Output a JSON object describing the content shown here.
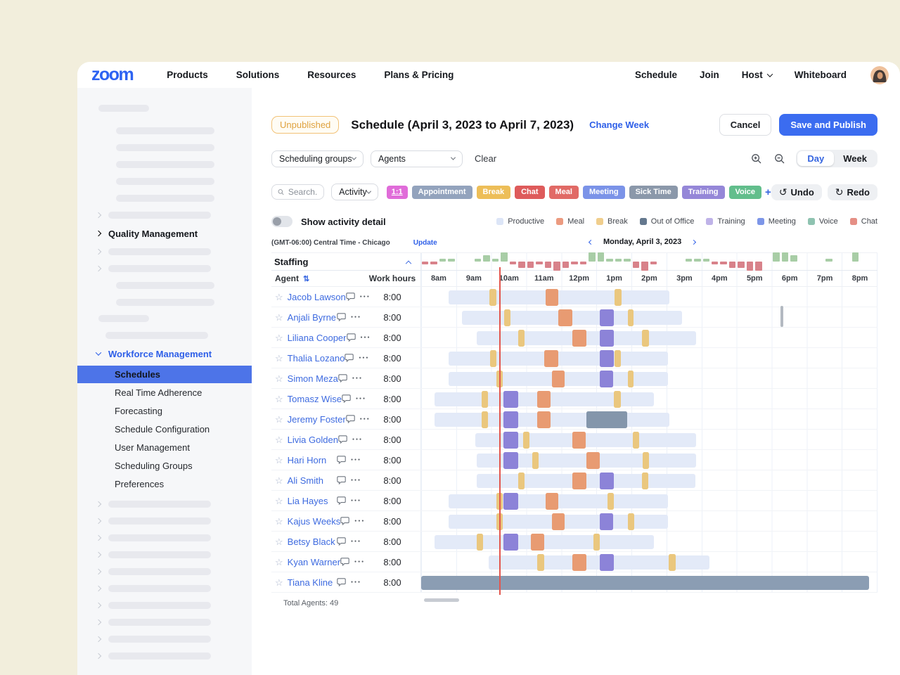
{
  "nav": {
    "logo": "zoom",
    "left_items": [
      "Products",
      "Solutions",
      "Resources",
      "Plans & Pricing"
    ],
    "right_items": [
      "Schedule",
      "Join",
      "Host",
      "Whiteboard"
    ]
  },
  "sidebar": {
    "quality_management": "Quality Management",
    "workforce_management": "Workforce Management",
    "items": [
      "Schedules",
      "Real Time Adherence",
      "Forecasting",
      "Schedule Configuration",
      "User Management",
      "Scheduling Groups",
      "Preferences"
    ],
    "selected": "Schedules"
  },
  "header": {
    "badge": "Unpublished",
    "title": "Schedule (April 3, 2023 to April 7, 2023)",
    "change_week": "Change Week",
    "cancel": "Cancel",
    "save": "Save and Publish"
  },
  "filters": {
    "groups_dropdown": "Scheduling groups",
    "agents_dropdown": "Agents",
    "clear": "Clear",
    "search_placeholder": "Search...",
    "activity_dropdown": "Activity",
    "day": "Day",
    "week": "Week",
    "add": "+",
    "undo": "Undo",
    "redo": "Redo"
  },
  "activity_chips": [
    {
      "label": "1:1",
      "color": "#E06CD9"
    },
    {
      "label": "Appointment",
      "color": "#93A3BD"
    },
    {
      "label": "Break",
      "color": "#EDBE58"
    },
    {
      "label": "Chat",
      "color": "#DE5B5B"
    },
    {
      "label": "Meal",
      "color": "#E16A66"
    },
    {
      "label": "Meeting",
      "color": "#7B93E8"
    },
    {
      "label": "Sick Time",
      "color": "#8B98AA"
    },
    {
      "label": "Training",
      "color": "#9587D8"
    },
    {
      "label": "Voice",
      "color": "#62BE8C"
    }
  ],
  "toggle_label": "Show activity detail",
  "legend": [
    {
      "label": "Productive",
      "color": "#DCE5F7"
    },
    {
      "label": "Meal",
      "color": "#EC9B80"
    },
    {
      "label": "Break",
      "color": "#F0CE8D"
    },
    {
      "label": "Out of Office",
      "color": "#64788E"
    },
    {
      "label": "Training",
      "color": "#BFB3E8"
    },
    {
      "label": "Meeting",
      "color": "#7D96E8"
    },
    {
      "label": "Voice",
      "color": "#8FC3B1"
    },
    {
      "label": "Chat",
      "color": "#E58F85"
    }
  ],
  "timezone": {
    "label": "(GMT-06:00) Central Time - Chicago",
    "update": "Update"
  },
  "date_nav": {
    "date": "Monday, April 3, 2023"
  },
  "staffing": {
    "label": "Staffing",
    "values": [
      -1,
      -1,
      1,
      1,
      0,
      0,
      1,
      2,
      1,
      3,
      -1,
      -2,
      -2,
      -1,
      -2,
      -3,
      -2,
      -1,
      -1,
      3,
      3,
      1,
      1,
      1,
      -2,
      -3,
      -1,
      0,
      0,
      0,
      1,
      1,
      1,
      -1,
      -1,
      -2,
      -2,
      -3,
      -3,
      0,
      3,
      3,
      2,
      0,
      0,
      0,
      1,
      0,
      0,
      3,
      0,
      0
    ]
  },
  "table": {
    "agent_header": "Agent",
    "work_hours_header": "Work hours",
    "hours": [
      "8am",
      "9am",
      "10am",
      "11am",
      "12pm",
      "1pm",
      "2pm",
      "3pm",
      "4pm",
      "5pm",
      "6pm",
      "7pm",
      "8pm"
    ],
    "total": "Total Agents: 49",
    "now_pct": 17.3
  },
  "palette": {
    "productive": "#E3EAF8",
    "b": "#EAC77E",
    "m": "#E89B72",
    "t": "#8C83D8",
    "o": "#8496AB",
    "full_ooo": "#8B9DB3",
    "staff_up": "#A8CDA6",
    "staff_down": "#D8828A"
  },
  "agents": [
    {
      "name": "Jacob Lawson",
      "hours": "8:00",
      "bar": [
        6.0,
        54.4
      ],
      "segs": [
        [
          "b",
          15.0,
          16.5
        ],
        [
          "m",
          27.2,
          30.1
        ],
        [
          "b",
          42.3,
          43.9
        ]
      ]
    },
    {
      "name": "Anjali Byrne",
      "hours": "8:00",
      "bar": [
        9.0,
        57.2
      ],
      "segs": [
        [
          "b",
          18.2,
          19.5
        ],
        [
          "m",
          30.1,
          33.1
        ],
        [
          "t",
          39.1,
          42.2
        ],
        [
          "b",
          45.3,
          46.5
        ]
      ]
    },
    {
      "name": "Liliana Cooper",
      "hours": "8:00",
      "bar": [
        12.1,
        60.3
      ],
      "segs": [
        [
          "b",
          21.2,
          22.6
        ],
        [
          "m",
          33.1,
          36.2
        ],
        [
          "t",
          39.1,
          42.2
        ],
        [
          "b",
          48.4,
          49.9
        ]
      ]
    },
    {
      "name": "Thalia Lozano",
      "hours": "8:00",
      "bar": [
        6.0,
        54.1
      ],
      "segs": [
        [
          "b",
          15.1,
          16.5
        ],
        [
          "m",
          27.0,
          30.1
        ],
        [
          "t",
          39.1,
          42.2
        ],
        [
          "b",
          42.3,
          43.7
        ]
      ]
    },
    {
      "name": "Simon Meza",
      "hours": "8:00",
      "bar": [
        6.0,
        54.1
      ],
      "segs": [
        [
          "b",
          16.5,
          17.9
        ],
        [
          "m",
          28.6,
          31.5
        ],
        [
          "t",
          39.1,
          42.0
        ],
        [
          "b",
          45.3,
          46.5
        ]
      ]
    },
    {
      "name": "Tomasz Wise",
      "hours": "8:00",
      "bar": [
        2.9,
        51.0
      ],
      "segs": [
        [
          "b",
          13.3,
          14.7
        ],
        [
          "t",
          18.1,
          21.2
        ],
        [
          "m",
          25.5,
          28.4
        ],
        [
          "b",
          42.2,
          43.7
        ]
      ]
    },
    {
      "name": "Jeremy Foster",
      "hours": "8:00",
      "bar": [
        2.9,
        54.4
      ],
      "segs": [
        [
          "b",
          13.3,
          14.7
        ],
        [
          "t",
          18.1,
          21.2
        ],
        [
          "m",
          25.5,
          28.4
        ],
        [
          "o",
          36.2,
          45.1
        ]
      ]
    },
    {
      "name": "Livia Golden",
      "hours": "8:00",
      "bar": [
        11.9,
        60.3
      ],
      "segs": [
        [
          "t",
          18.1,
          21.2
        ],
        [
          "b",
          22.4,
          23.8
        ],
        [
          "m",
          33.1,
          36.0
        ],
        [
          "b",
          46.4,
          47.8
        ]
      ]
    },
    {
      "name": "Hari Horn",
      "hours": "8:00",
      "bar": [
        12.1,
        60.3
      ],
      "segs": [
        [
          "t",
          18.1,
          21.2
        ],
        [
          "b",
          24.3,
          25.7
        ],
        [
          "m",
          36.2,
          39.1
        ],
        [
          "b",
          48.5,
          49.9
        ]
      ]
    },
    {
      "name": "Ali Smith",
      "hours": "8:00",
      "bar": [
        12.1,
        60.1
      ],
      "segs": [
        [
          "b",
          21.2,
          22.6
        ],
        [
          "m",
          33.1,
          36.2
        ],
        [
          "t",
          39.1,
          42.2
        ],
        [
          "b",
          48.4,
          49.8
        ]
      ]
    },
    {
      "name": "Lia Hayes",
      "hours": "8:00",
      "bar": [
        6.0,
        54.1
      ],
      "segs": [
        [
          "b",
          16.5,
          17.9
        ],
        [
          "t",
          18.1,
          21.2
        ],
        [
          "m",
          27.2,
          30.0
        ],
        [
          "b",
          40.8,
          42.2
        ]
      ]
    },
    {
      "name": "Kajus Weeks",
      "hours": "8:00",
      "bar": [
        6.0,
        54.1
      ],
      "segs": [
        [
          "b",
          16.5,
          17.9
        ],
        [
          "m",
          28.6,
          31.5
        ],
        [
          "t",
          39.1,
          42.0
        ],
        [
          "b",
          45.3,
          46.7
        ]
      ]
    },
    {
      "name": "Betsy Black",
      "hours": "8:00",
      "bar": [
        2.9,
        51.0
      ],
      "segs": [
        [
          "b",
          12.2,
          13.6
        ],
        [
          "t",
          18.1,
          21.2
        ],
        [
          "m",
          24.1,
          27.0
        ],
        [
          "b",
          37.7,
          39.1
        ]
      ]
    },
    {
      "name": "Kyan Warner",
      "hours": "8:00",
      "bar": [
        14.8,
        63.2
      ],
      "segs": [
        [
          "b",
          25.5,
          27.0
        ],
        [
          "m",
          33.1,
          36.2
        ],
        [
          "t",
          39.1,
          42.2
        ],
        [
          "b",
          54.3,
          55.8
        ]
      ]
    },
    {
      "name": "Tiana Kline",
      "hours": "8:00",
      "bar": [
        0,
        98.2
      ],
      "bar_type": "full_ooo",
      "segs": []
    }
  ]
}
